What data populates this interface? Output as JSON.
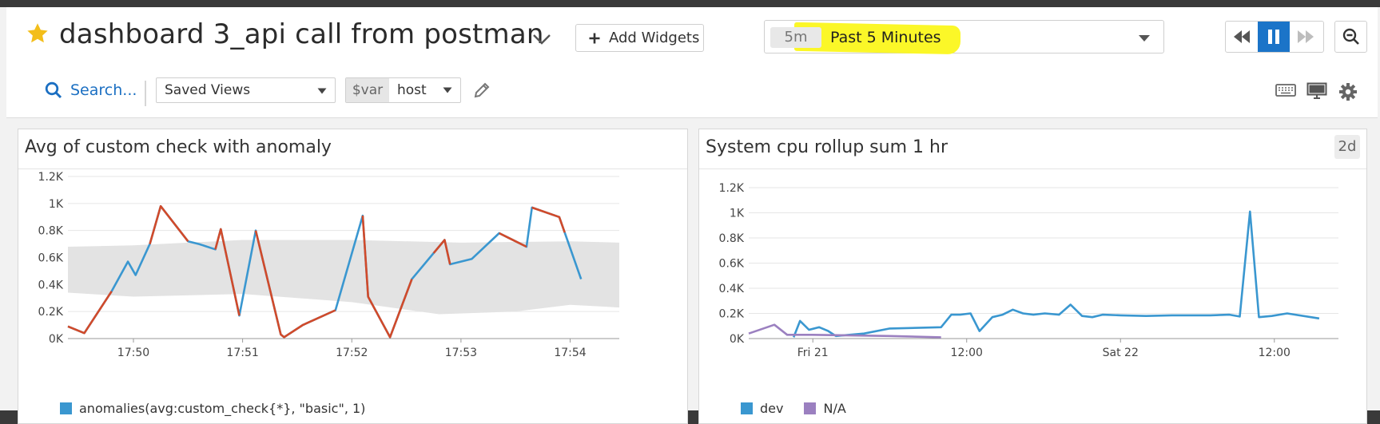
{
  "dashboard": {
    "title": "dashboard 3_api call from postman",
    "add_widgets_label": "Add Widgets"
  },
  "timeframe": {
    "chip": "5m",
    "label": "Past 5 Minutes",
    "highlight_color": "#fbf728"
  },
  "toolbar": {
    "search_label": "Search...",
    "saved_views_label": "Saved Views",
    "var_label": "$var",
    "var_value": "host"
  },
  "colors": {
    "accent": "#1b74c8",
    "series_blue": "#3a97d0",
    "series_red": "#d14a2a",
    "series_purple": "#9b80c0",
    "band_gray": "#e3e3e3"
  },
  "widgets": [
    {
      "title": "Avg of custom check with anomaly",
      "legend": [
        "anomalies(avg:custom_check{*}, \"basic\", 1)"
      ]
    },
    {
      "title": "System cpu rollup sum 1 hr",
      "badge": "2d",
      "legend": [
        "dev",
        "N/A"
      ]
    }
  ],
  "chart_data": [
    {
      "type": "line",
      "title": "Avg of custom check with anomaly",
      "y_ticks": [
        "0K",
        "0.2K",
        "0.4K",
        "0.6K",
        "0.8K",
        "1K",
        "1.2K"
      ],
      "x_ticks": [
        "17:50",
        "17:51",
        "17:52",
        "17:53",
        "17:54"
      ],
      "x_tick_minutes": [
        0,
        1,
        2,
        3,
        4
      ],
      "ylim": [
        0,
        1200
      ],
      "xlim": [
        -0.6,
        4.45
      ],
      "grid": true,
      "legend_position": "bottom-left",
      "band": {
        "upper": [
          [
            -0.6,
            680
          ],
          [
            0,
            690
          ],
          [
            1,
            730
          ],
          [
            2,
            730
          ],
          [
            3,
            710
          ],
          [
            4,
            720
          ],
          [
            4.45,
            710
          ]
        ],
        "lower": [
          [
            -0.6,
            340
          ],
          [
            0,
            310
          ],
          [
            1,
            330
          ],
          [
            2,
            270
          ],
          [
            2.8,
            180
          ],
          [
            3.5,
            200
          ],
          [
            4,
            250
          ],
          [
            4.45,
            230
          ]
        ]
      },
      "series": [
        {
          "name": "anomalies(avg:custom_check{*}, \"basic\", 1)",
          "points": [
            [
              -0.6,
              90
            ],
            [
              -0.45,
              40
            ],
            [
              -0.2,
              350
            ],
            [
              -0.05,
              570
            ],
            [
              0.02,
              470
            ],
            [
              0.15,
              700
            ],
            [
              0.25,
              980
            ],
            [
              0.5,
              720
            ],
            [
              0.6,
              700
            ],
            [
              0.75,
              660
            ],
            [
              0.8,
              810
            ],
            [
              0.97,
              170
            ],
            [
              1.12,
              800
            ],
            [
              1.35,
              30
            ],
            [
              1.38,
              10
            ],
            [
              1.55,
              100
            ],
            [
              1.85,
              210
            ],
            [
              2.1,
              910
            ],
            [
              2.15,
              310
            ],
            [
              2.35,
              10
            ],
            [
              2.55,
              440
            ],
            [
              2.85,
              730
            ],
            [
              2.9,
              550
            ],
            [
              3.1,
              590
            ],
            [
              3.35,
              780
            ],
            [
              3.6,
              680
            ],
            [
              3.65,
              970
            ],
            [
              3.9,
              900
            ],
            [
              4.1,
              440
            ]
          ],
          "anomalous_ranges": [
            [
              -0.6,
              -0.2
            ],
            [
              0.15,
              0.5
            ],
            [
              0.75,
              0.97
            ],
            [
              1.12,
              1.85
            ],
            [
              2.1,
              2.55
            ],
            [
              2.75,
              2.9
            ],
            [
              3.35,
              3.6
            ],
            [
              3.65,
              3.95
            ]
          ]
        }
      ]
    },
    {
      "type": "line",
      "title": "System cpu rollup sum 1 hr",
      "y_ticks": [
        "0K",
        "0.2K",
        "0.4K",
        "0.6K",
        "0.8K",
        "1K",
        "1.2K"
      ],
      "x_ticks": [
        "Fri 21",
        "12:00",
        "Sat 22",
        "12:00"
      ],
      "x_tick_hours": [
        0,
        12,
        24,
        36
      ],
      "ylim": [
        0,
        1200
      ],
      "xlim": [
        -5,
        41
      ],
      "grid": true,
      "legend_position": "bottom-left",
      "series": [
        {
          "name": "dev",
          "points": [
            [
              -1.5,
              10
            ],
            [
              -1.0,
              140
            ],
            [
              -0.3,
              70
            ],
            [
              0.5,
              90
            ],
            [
              1.2,
              60
            ],
            [
              1.8,
              20
            ],
            [
              4.0,
              40
            ],
            [
              6.0,
              80
            ],
            [
              10.0,
              90
            ],
            [
              10.8,
              190
            ],
            [
              11.5,
              190
            ],
            [
              12.3,
              200
            ],
            [
              13.0,
              60
            ],
            [
              14.0,
              170
            ],
            [
              14.8,
              190
            ],
            [
              15.6,
              230
            ],
            [
              16.4,
              200
            ],
            [
              17.2,
              190
            ],
            [
              18.1,
              200
            ],
            [
              19.2,
              190
            ],
            [
              20.1,
              270
            ],
            [
              21.0,
              180
            ],
            [
              21.8,
              170
            ],
            [
              22.6,
              190
            ],
            [
              24.0,
              185
            ],
            [
              26.0,
              180
            ],
            [
              28.0,
              185
            ],
            [
              31.0,
              185
            ],
            [
              32.5,
              190
            ],
            [
              33.3,
              175
            ],
            [
              34.1,
              1010
            ],
            [
              34.8,
              170
            ],
            [
              35.8,
              180
            ],
            [
              37.0,
              200
            ],
            [
              39.5,
              160
            ]
          ]
        },
        {
          "name": "N/A",
          "points": [
            [
              -5.0,
              40
            ],
            [
              -3.0,
              110
            ],
            [
              -2.0,
              30
            ],
            [
              0.0,
              30
            ],
            [
              6.0,
              20
            ],
            [
              10.0,
              10
            ]
          ]
        }
      ]
    }
  ]
}
